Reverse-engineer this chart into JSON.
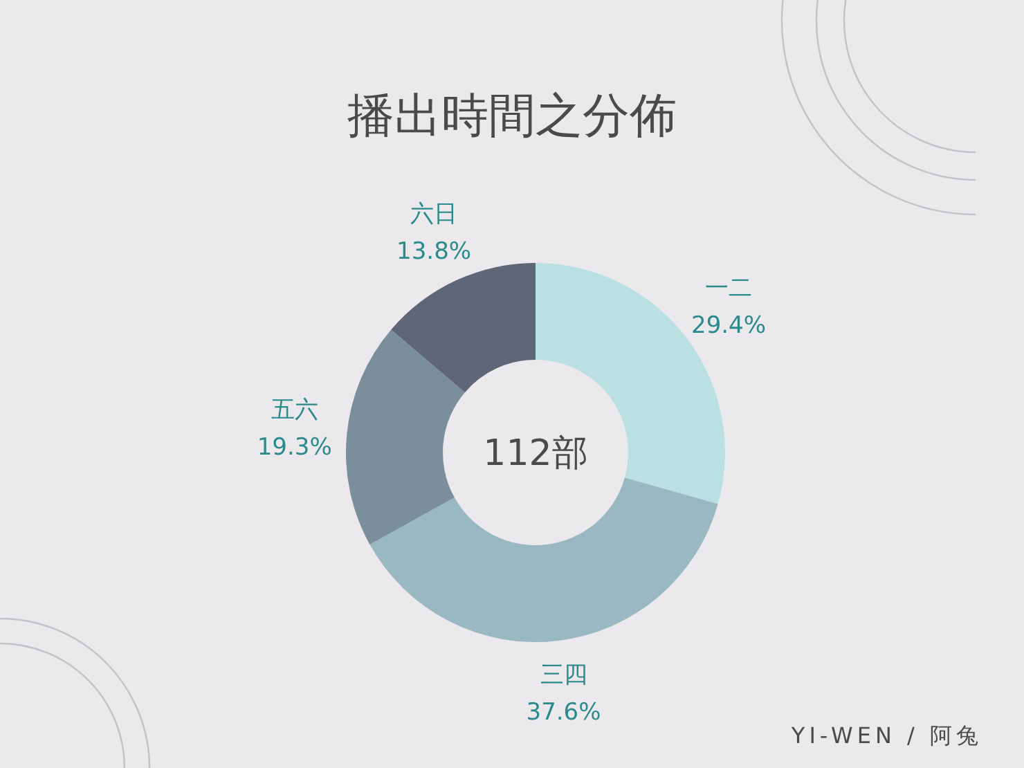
{
  "chart_data": {
    "type": "donut",
    "title": "播出時間之分佈",
    "categories": [
      "一二",
      "三四",
      "五六",
      "六日"
    ],
    "values": [
      29.4,
      37.6,
      19.3,
      13.8
    ],
    "colors": [
      "#bbe0e1",
      "#9ab8c1",
      "#7a8e9c",
      "#5e6678"
    ],
    "value_labels": [
      "29.4%",
      "37.6%",
      "19.3%",
      "13.8%"
    ],
    "annotations": [
      "112部",
      "YI-WEN / 阿兔"
    ]
  }
}
